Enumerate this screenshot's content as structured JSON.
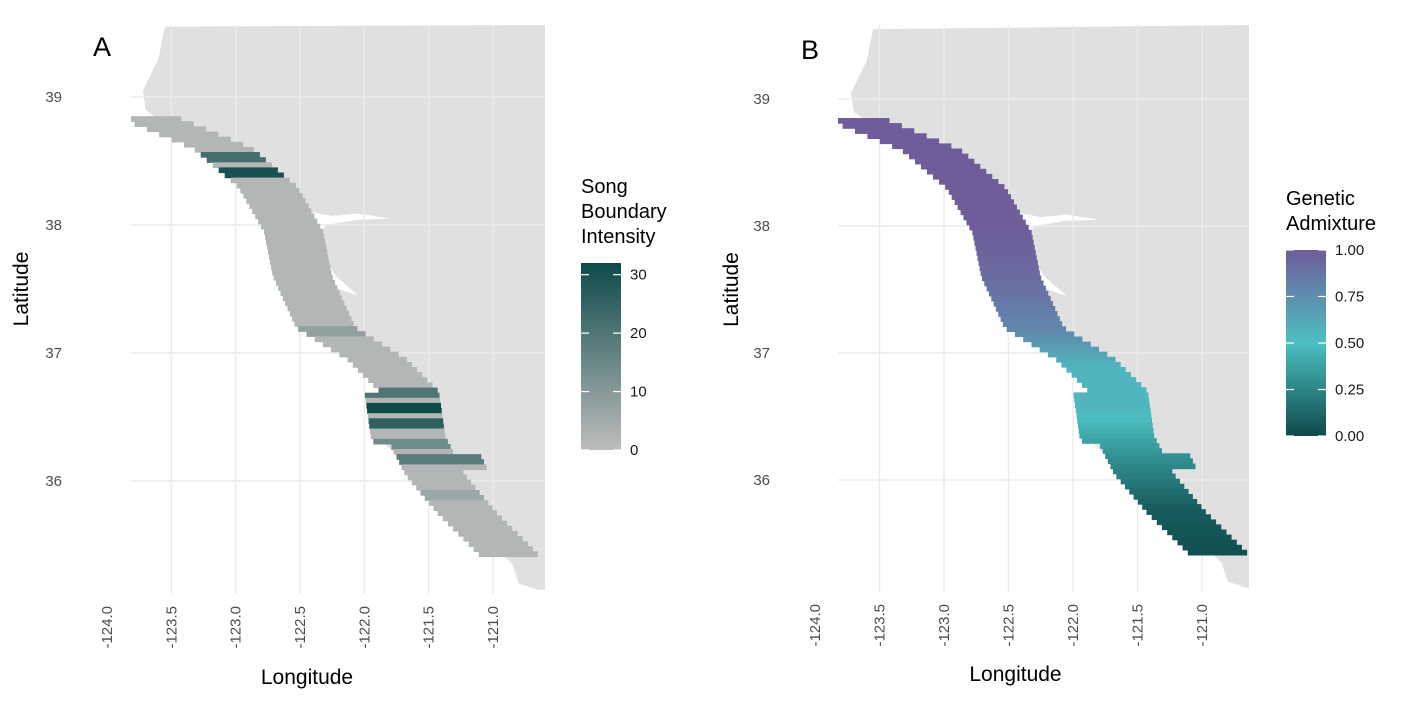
{
  "chart_data": [
    {
      "type": "map",
      "panel_label": "A",
      "xlabel": "Longitude",
      "ylabel": "Latitude",
      "x_ticks": [
        "-124.0",
        "-123.5",
        "-123.0",
        "-122.5",
        "-122.0",
        "-121.5",
        "-121.0"
      ],
      "y_ticks": [
        "36",
        "37",
        "38",
        "39"
      ],
      "xlim": [
        -124.05,
        -120.75
      ],
      "ylim": [
        35.15,
        39.55
      ],
      "land_color": "#e0e0e0",
      "grid": true,
      "legend": {
        "title_lines": [
          "Song",
          "Boundary",
          "Intensity"
        ],
        "ticks": [
          "0",
          "10",
          "20",
          "30"
        ],
        "range": [
          0,
          32
        ],
        "color_low": "#bdbdbd",
        "color_high": "#0e4a4a"
      },
      "survey_region": {
        "centerline": [
          [
            -123.7,
            38.85
          ],
          [
            -123.1,
            38.6
          ],
          [
            -122.75,
            38.3
          ],
          [
            -122.55,
            37.95
          ],
          [
            -122.48,
            37.6
          ],
          [
            -122.3,
            37.2
          ],
          [
            -121.9,
            36.95
          ],
          [
            -121.65,
            36.7
          ],
          [
            -121.6,
            36.35
          ],
          [
            -121.45,
            36.05
          ],
          [
            -121.2,
            35.75
          ],
          [
            -120.85,
            35.4
          ]
        ],
        "width_deg": 0.23
      },
      "boundary_bands": [
        {
          "lat": 38.55,
          "intensity": 22
        },
        {
          "lat": 38.42,
          "intensity": 30
        },
        {
          "lat": 37.2,
          "intensity": 8
        },
        {
          "lat": 36.72,
          "intensity": 20
        },
        {
          "lat": 36.58,
          "intensity": 32
        },
        {
          "lat": 36.48,
          "intensity": 26
        },
        {
          "lat": 36.3,
          "intensity": 14
        },
        {
          "lat": 36.18,
          "intensity": 18
        },
        {
          "lat": 35.9,
          "intensity": 6
        }
      ]
    },
    {
      "type": "map",
      "panel_label": "B",
      "xlabel": "Longitude",
      "ylabel": "Latitude",
      "x_ticks": [
        "-124.0",
        "-123.5",
        "-123.0",
        "-122.5",
        "-122.0",
        "-121.5",
        "-121.0"
      ],
      "y_ticks": [
        "36",
        "37",
        "38",
        "39"
      ],
      "xlim": [
        -124.05,
        -120.75
      ],
      "ylim": [
        35.15,
        39.55
      ],
      "land_color": "#e0e0e0",
      "grid": true,
      "legend": {
        "title_lines": [
          "Genetic",
          "Admixture"
        ],
        "ticks": [
          "0.00",
          "0.25",
          "0.50",
          "0.75",
          "1.00"
        ],
        "range": [
          0,
          1
        ],
        "colors": [
          "#0e4a4a",
          "#4cbfc2",
          "#6f5d9a"
        ]
      },
      "admixture_by_latitude": [
        [
          35.3,
          0.0
        ],
        [
          35.8,
          0.08
        ],
        [
          36.2,
          0.3
        ],
        [
          36.6,
          0.55
        ],
        [
          36.9,
          0.55
        ],
        [
          37.2,
          0.78
        ],
        [
          37.6,
          0.92
        ],
        [
          38.0,
          1.0
        ],
        [
          38.9,
          1.0
        ]
      ]
    }
  ]
}
